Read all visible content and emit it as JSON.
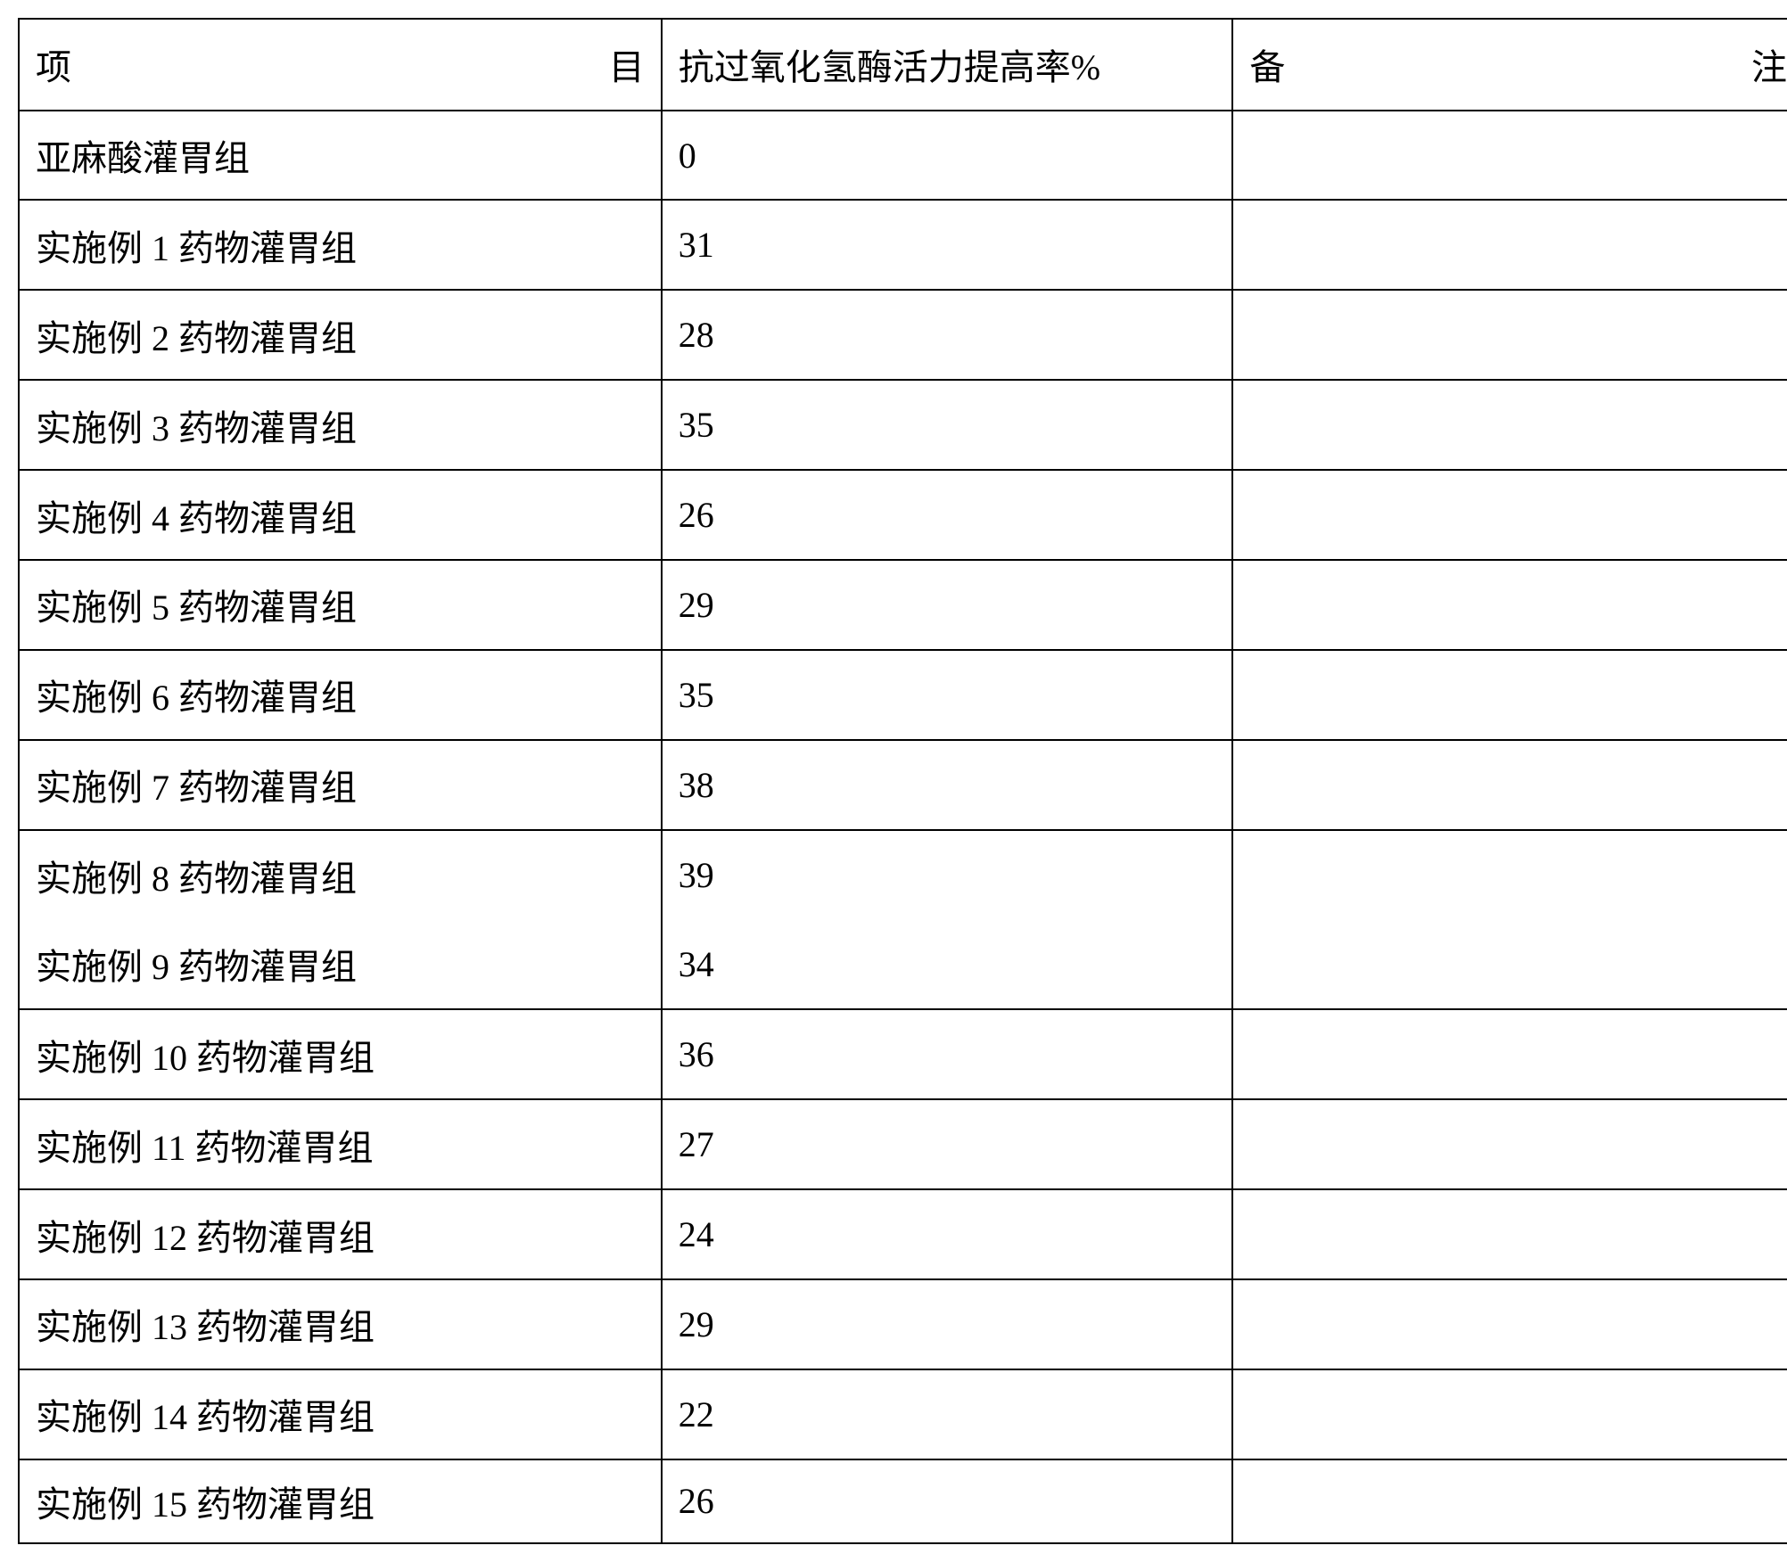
{
  "table": {
    "type": "table",
    "columns": [
      {
        "header_left": "项",
        "header_right": "目",
        "width_pct": 36,
        "align": "justify-distributed"
      },
      {
        "header": "抗过氧化氢酶活力提高率%",
        "width_pct": 32,
        "align": "left"
      },
      {
        "header_left": "备",
        "header_right": "注",
        "width_pct": 32,
        "align": "justify-distributed"
      }
    ],
    "header": {
      "col1": "项                                目",
      "col2": "抗过氧化氢酶活力提高率%",
      "col3": "备                                注"
    },
    "rows": [
      {
        "item": "亚麻酸灌胃组",
        "value": "0",
        "note": ""
      },
      {
        "item": "实施例 1 药物灌胃组",
        "value": "31",
        "note": ""
      },
      {
        "item": "实施例 2 药物灌胃组",
        "value": "28",
        "note": ""
      },
      {
        "item": "实施例 3 药物灌胃组",
        "value": "35",
        "note": ""
      },
      {
        "item": "实施例 4 药物灌胃组",
        "value": "26",
        "note": ""
      },
      {
        "item": "实施例 5 药物灌胃组",
        "value": "29",
        "note": ""
      },
      {
        "item": "实施例 6 药物灌胃组",
        "value": "35",
        "note": ""
      },
      {
        "item": "实施例 7 药物灌胃组",
        "value": "38",
        "note": ""
      }
    ],
    "merged_row": {
      "items": [
        "实施例 8 药物灌胃组",
        "实施例 9 药物灌胃组"
      ],
      "values": [
        "39",
        "34"
      ],
      "note": ""
    },
    "rows_after": [
      {
        "item": "实施例 10 药物灌胃组",
        "value": "36",
        "note": ""
      },
      {
        "item": "实施例 11 药物灌胃组",
        "value": "27",
        "note": ""
      },
      {
        "item": "实施例 12 药物灌胃组",
        "value": "24",
        "note": ""
      },
      {
        "item": "实施例 13 药物灌胃组",
        "value": "29",
        "note": ""
      },
      {
        "item": "实施例 14 药物灌胃组",
        "value": "22",
        "note": ""
      },
      {
        "item": "实施例 15 药物灌胃组",
        "value": "26",
        "note": ""
      }
    ],
    "border_color": "#000000",
    "background_color": "#ffffff",
    "text_color": "#000000",
    "font_size": 40,
    "border_width": 2
  }
}
